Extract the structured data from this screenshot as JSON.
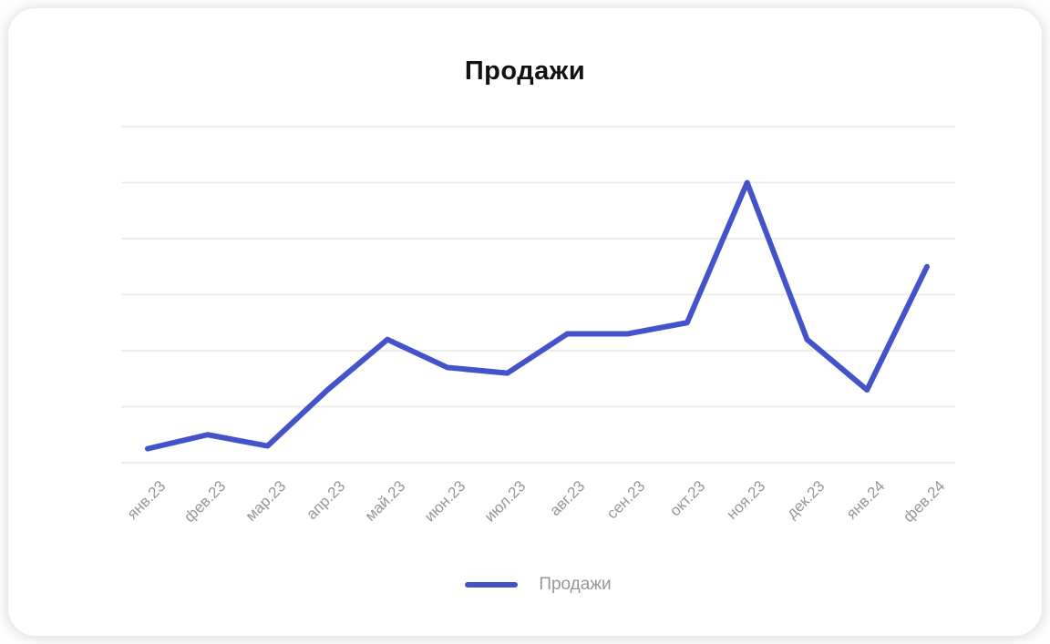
{
  "chart_data": {
    "type": "line",
    "title": "Продажи",
    "categories": [
      "янв.23",
      "фев.23",
      "мар.23",
      "апр.23",
      "май.23",
      "июн.23",
      "июл.23",
      "авг.23",
      "сен.23",
      "окт.23",
      "ноя.23",
      "дек.23",
      "янв.24",
      "фев.24"
    ],
    "series": [
      {
        "name": "Продажи",
        "color": "#4353c9",
        "values": [
          2.5,
          5,
          3,
          13,
          22,
          17,
          16,
          23,
          23,
          25,
          50,
          22,
          13,
          35
        ]
      }
    ],
    "xlabel": "",
    "ylabel": "",
    "ylim": [
      0,
      60
    ],
    "y_grid_step": 10,
    "grid": "horizontal-only",
    "y_tick_labels_visible": false,
    "x_tick_rotation_deg": 45,
    "legend_position": "bottom",
    "colors": {
      "line": "#4353c9",
      "grid": "#ececec",
      "tick_label": "#979797",
      "title": "#121212",
      "legend_label": "#979797",
      "card_background": "#ffffff"
    }
  }
}
